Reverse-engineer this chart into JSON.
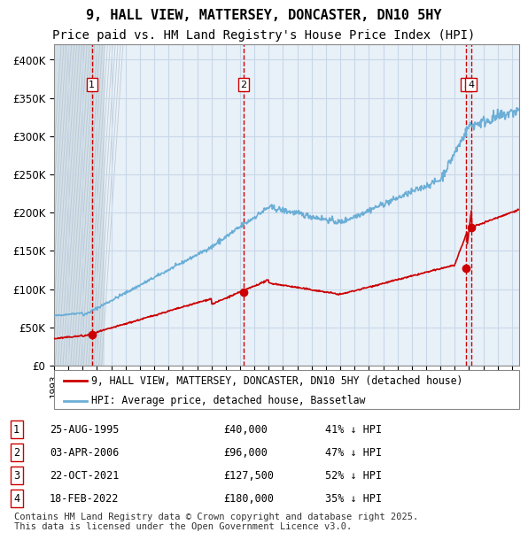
{
  "title": "9, HALL VIEW, MATTERSEY, DONCASTER, DN10 5HY",
  "subtitle": "Price paid vs. HM Land Registry's House Price Index (HPI)",
  "ylim": [
    0,
    420000
  ],
  "yticks": [
    0,
    50000,
    100000,
    150000,
    200000,
    250000,
    300000,
    350000,
    400000
  ],
  "xlim_start": 1993.0,
  "xlim_end": 2025.5,
  "hpi_color": "#6baed6",
  "price_color": "#cc0000",
  "vline_color": "#cc0000",
  "grid_color": "#c8d8e8",
  "plot_bg_color": "#e8f0f8",
  "legend_label_price": "9, HALL VIEW, MATTERSEY, DONCASTER, DN10 5HY (detached house)",
  "legend_label_hpi": "HPI: Average price, detached house, Bassetlaw",
  "transactions": [
    {
      "num": 1,
      "date": "25-AUG-1995",
      "date_x": 1995.65,
      "price": 40000,
      "pct": "41%",
      "dir": "↓"
    },
    {
      "num": 2,
      "date": "03-APR-2006",
      "date_x": 2006.25,
      "price": 96000,
      "pct": "47%",
      "dir": "↓"
    },
    {
      "num": 3,
      "date": "22-OCT-2021",
      "date_x": 2021.81,
      "price": 127500,
      "pct": "52%",
      "dir": "↓"
    },
    {
      "num": 4,
      "date": "18-FEB-2022",
      "date_x": 2022.13,
      "price": 180000,
      "pct": "35%",
      "dir": "↓"
    }
  ],
  "footnote": "Contains HM Land Registry data © Crown copyright and database right 2025.\nThis data is licensed under the Open Government Licence v3.0.",
  "title_fontsize": 11,
  "subtitle_fontsize": 10,
  "footnote_fontsize": 7.5
}
